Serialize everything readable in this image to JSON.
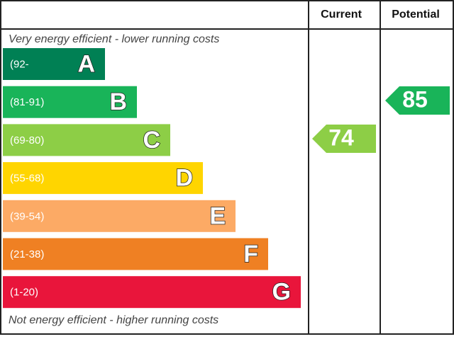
{
  "header": {
    "current": "Current",
    "potential": "Potential"
  },
  "top_note": "Very energy efficient - lower running costs",
  "bottom_note": "Not energy efficient - higher running costs",
  "bands": [
    {
      "range": "(92-",
      "letter": "A",
      "color": "#008054"
    },
    {
      "range": "(81-91)",
      "letter": "B",
      "color": "#19b459"
    },
    {
      "range": "(69-80)",
      "letter": "C",
      "color": "#8dce46"
    },
    {
      "range": "(55-68)",
      "letter": "D",
      "color": "#ffd500"
    },
    {
      "range": "(39-54)",
      "letter": "E",
      "color": "#fcaa65"
    },
    {
      "range": "(21-38)",
      "letter": "F",
      "color": "#ef8023"
    },
    {
      "range": "(1-20)",
      "letter": "G",
      "color": "#e9153b"
    }
  ],
  "current": 74,
  "potential": 85
}
